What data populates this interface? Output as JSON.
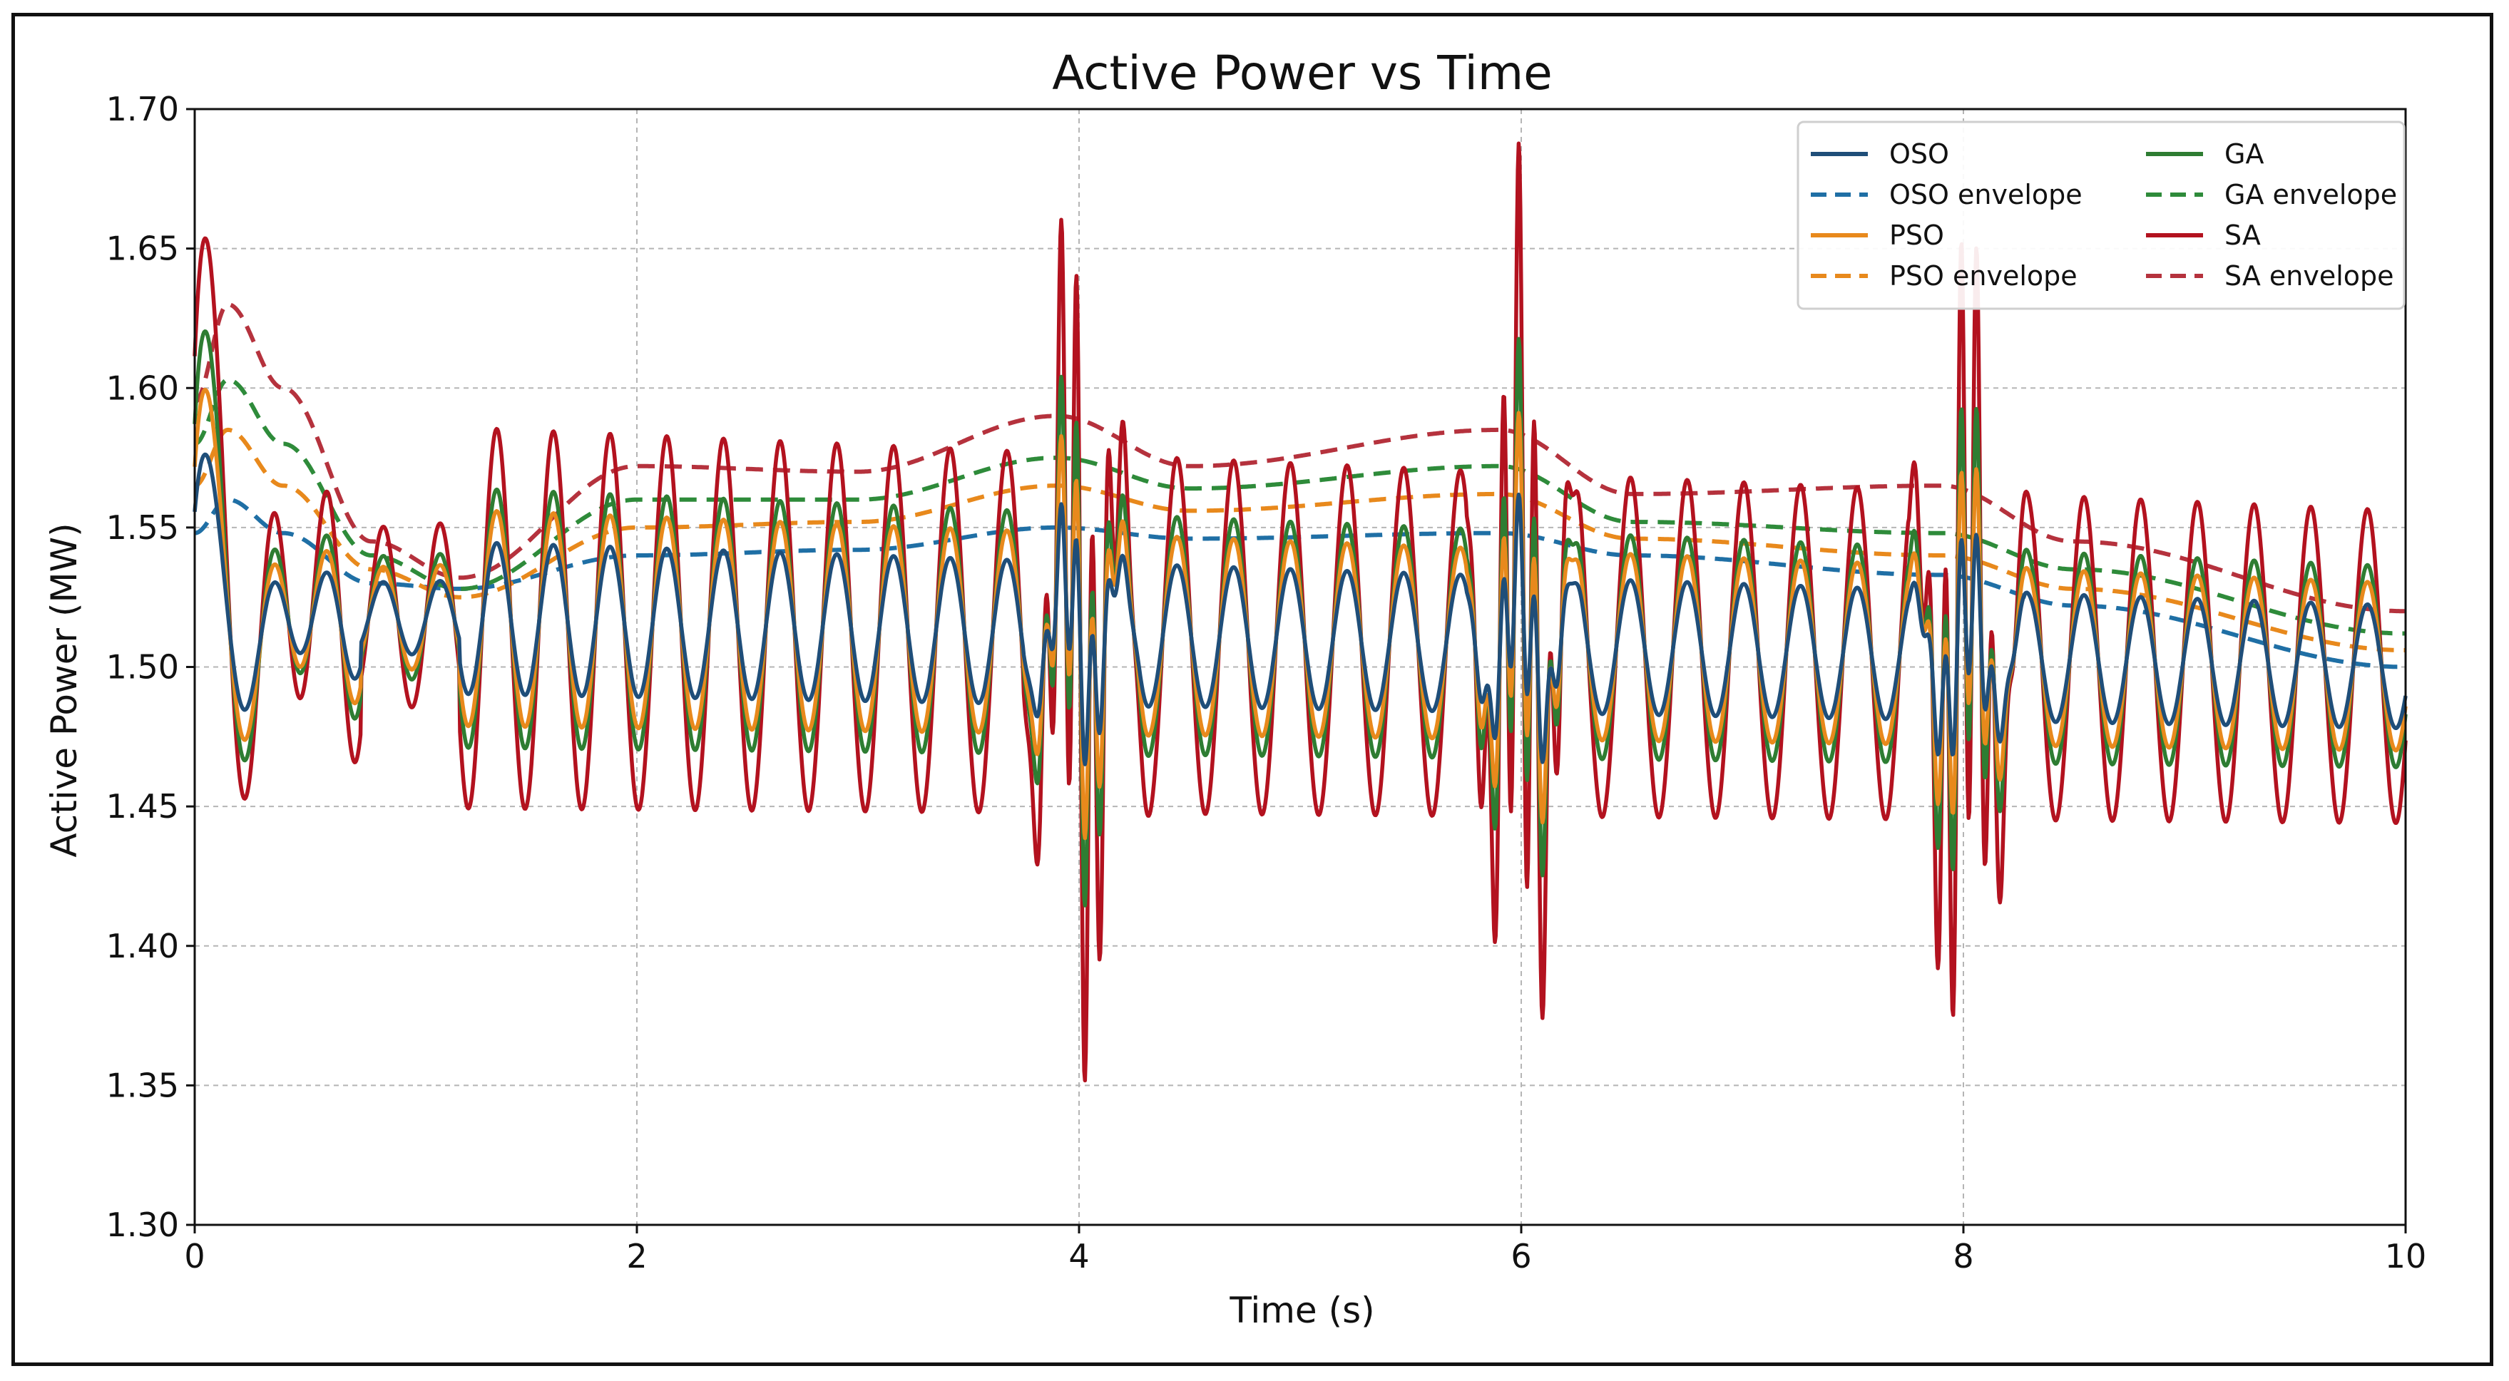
{
  "chart_data": {
    "type": "line",
    "title": "Active Power vs Time",
    "xlabel": "Time (s)",
    "ylabel": "Active Power (MW)",
    "xlim": [
      0,
      10
    ],
    "ylim": [
      1.3,
      1.7
    ],
    "xticks": [
      0,
      2,
      4,
      6,
      8,
      10
    ],
    "xtick_labels": [
      "0",
      "2",
      "4",
      "6",
      "8",
      "10"
    ],
    "yticks": [
      1.3,
      1.35,
      1.4,
      1.45,
      1.5,
      1.55,
      1.6,
      1.65,
      1.7
    ],
    "ytick_labels": [
      "1.30",
      "1.35",
      "1.40",
      "1.45",
      "1.50",
      "1.55",
      "1.60",
      "1.65",
      "1.70"
    ],
    "grid": true,
    "legend_position": "top-right",
    "legend_columns": 2,
    "disturbance_times": [
      3.9,
      5.9,
      7.9
    ],
    "series": [
      {
        "name": "OSO",
        "color": "#1f4e79",
        "style": "solid",
        "dc_start": 1.52,
        "dc_end": 1.5,
        "amp_start": 0.028,
        "amp_end": 0.022,
        "init_min": 1.43,
        "init_max": 1.595,
        "spike_amp": 0.03
      },
      {
        "name": "PSO",
        "color": "#e8891c",
        "style": "solid",
        "dc_start": 1.52,
        "dc_end": 1.5,
        "amp_start": 0.04,
        "amp_end": 0.03,
        "init_min": 1.402,
        "init_max": 1.625,
        "spike_amp": 0.05
      },
      {
        "name": "GA",
        "color": "#2e7d32",
        "style": "solid",
        "dc_start": 1.52,
        "dc_end": 1.5,
        "amp_start": 0.048,
        "amp_end": 0.036,
        "init_min": 1.38,
        "init_max": 1.652,
        "spike_amp": 0.07
      },
      {
        "name": "SA",
        "color": "#b3121f",
        "style": "solid",
        "dc_start": 1.52,
        "dc_end": 1.5,
        "amp_start": 0.07,
        "amp_end": 0.056,
        "init_min": 1.348,
        "init_max": 1.694,
        "spike_amp": 0.12
      },
      {
        "name": "OSO envelope",
        "color": "#1f6fa5",
        "style": "dashed",
        "values_x": [
          0,
          0.15,
          0.4,
          0.8,
          1.2,
          2,
          3,
          3.9,
          4.5,
          5.9,
          6.5,
          7.9,
          8.5,
          10
        ],
        "values_y": [
          1.548,
          1.56,
          1.548,
          1.53,
          1.528,
          1.54,
          1.542,
          1.55,
          1.546,
          1.548,
          1.54,
          1.533,
          1.522,
          1.5
        ]
      },
      {
        "name": "PSO envelope",
        "color": "#e8891c",
        "style": "dashed",
        "values_x": [
          0,
          0.15,
          0.4,
          0.8,
          1.2,
          2,
          3,
          3.9,
          4.5,
          5.9,
          6.5,
          7.9,
          8.5,
          10
        ],
        "values_y": [
          1.565,
          1.585,
          1.565,
          1.535,
          1.525,
          1.55,
          1.552,
          1.565,
          1.556,
          1.562,
          1.546,
          1.54,
          1.528,
          1.506
        ]
      },
      {
        "name": "GA envelope",
        "color": "#2e8b3a",
        "style": "dashed",
        "values_x": [
          0,
          0.15,
          0.4,
          0.8,
          1.2,
          2,
          3,
          3.9,
          4.5,
          5.9,
          6.5,
          7.9,
          8.5,
          10
        ],
        "values_y": [
          1.58,
          1.603,
          1.58,
          1.54,
          1.528,
          1.56,
          1.56,
          1.575,
          1.564,
          1.572,
          1.552,
          1.548,
          1.535,
          1.512
        ]
      },
      {
        "name": "SA envelope",
        "color": "#b5323d",
        "style": "dashed",
        "values_x": [
          0,
          0.15,
          0.4,
          0.8,
          1.2,
          2,
          3,
          3.9,
          4.5,
          5.9,
          6.5,
          7.9,
          8.5,
          10
        ],
        "values_y": [
          1.595,
          1.63,
          1.6,
          1.545,
          1.532,
          1.572,
          1.57,
          1.59,
          1.572,
          1.585,
          1.562,
          1.565,
          1.545,
          1.52
        ]
      }
    ],
    "legend_order": [
      "OSO",
      "GA",
      "OSO envelope",
      "GA envelope",
      "PSO",
      "SA",
      "PSO envelope",
      "SA envelope"
    ]
  }
}
